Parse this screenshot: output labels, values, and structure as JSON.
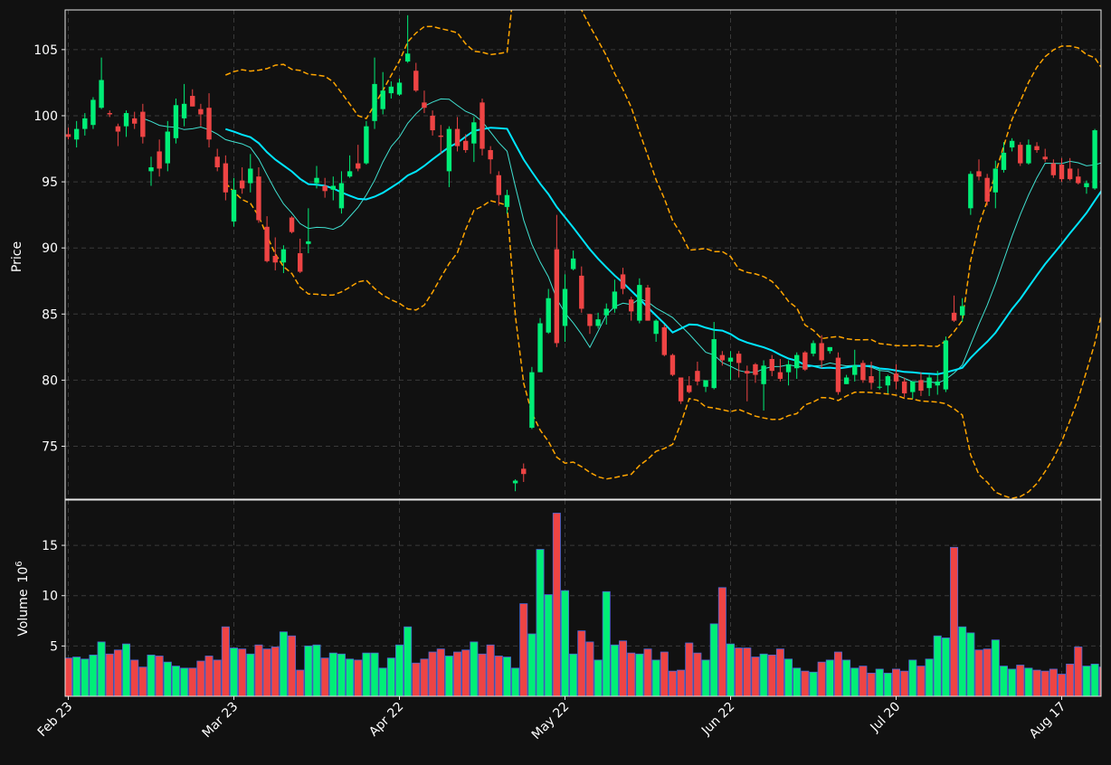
{
  "colors": {
    "background": "#111111",
    "axes_border": "#e6e6e6",
    "grid": "#3a3a3a",
    "up": "#00ee77",
    "down": "#ee4444",
    "volume_edge": "#4a67d6",
    "ma_fast": "#40e0d0",
    "ma_slow": "#00e5ff",
    "bands": "#ffa500",
    "text": "#ffffff"
  },
  "chart_data": {
    "type": "candlestick",
    "price_axis": {
      "label": "Price",
      "ylim": [
        71,
        108
      ],
      "ticks": [
        75,
        80,
        85,
        90,
        95,
        100,
        105
      ],
      "grid": true
    },
    "volume_axis": {
      "label": "Volume",
      "unit_exp": "6",
      "ylim": [
        0,
        19.5
      ],
      "ticks": [
        5,
        10,
        15
      ],
      "grid": true
    },
    "x_tick_labels": [
      "Feb 23",
      "Mar 23",
      "Apr 22",
      "May 22",
      "Jun 22",
      "Jul 20",
      "Aug 17"
    ],
    "x_tick_index": [
      0,
      20,
      40,
      60,
      80,
      100,
      120
    ],
    "dates_note": "trading days Feb 23 – Aug 20 (127 sessions)",
    "ohlc": [
      [
        98.6,
        99.1,
        98.2,
        98.4
      ],
      [
        98.2,
        99.6,
        97.6,
        99.0
      ],
      [
        99.0,
        100.2,
        98.5,
        99.8
      ],
      [
        99.3,
        101.4,
        99.0,
        101.2
      ],
      [
        100.6,
        104.4,
        100.5,
        102.7
      ],
      [
        100.2,
        100.4,
        99.9,
        100.1
      ],
      [
        99.2,
        99.4,
        97.7,
        98.8
      ],
      [
        99.2,
        100.4,
        98.4,
        100.2
      ],
      [
        99.8,
        100.3,
        99.0,
        99.4
      ],
      [
        100.3,
        100.9,
        97.9,
        98.4
      ],
      [
        95.8,
        96.9,
        94.7,
        96.1
      ],
      [
        97.3,
        98.2,
        95.4,
        96.0
      ],
      [
        96.4,
        99.6,
        95.8,
        98.8
      ],
      [
        98.3,
        101.3,
        97.9,
        100.8
      ],
      [
        99.8,
        102.4,
        99.2,
        100.9
      ],
      [
        101.5,
        102.0,
        100.7,
        100.7
      ],
      [
        100.5,
        100.9,
        99.2,
        100.1
      ],
      [
        100.6,
        101.7,
        97.6,
        98.2
      ],
      [
        96.9,
        97.5,
        95.8,
        96.1
      ],
      [
        96.4,
        97.0,
        93.6,
        94.2
      ],
      [
        92.0,
        95.3,
        91.6,
        94.4
      ],
      [
        95.1,
        96.1,
        94.1,
        94.5
      ],
      [
        94.9,
        97.1,
        94.2,
        96.0
      ],
      [
        95.4,
        96.1,
        91.9,
        92.1
      ],
      [
        91.6,
        92.4,
        88.9,
        89.0
      ],
      [
        89.4,
        90.8,
        88.3,
        88.9
      ],
      [
        88.9,
        90.2,
        88.1,
        89.9
      ],
      [
        92.3,
        92.4,
        91.1,
        91.2
      ],
      [
        89.6,
        90.7,
        88.1,
        88.2
      ],
      [
        90.3,
        93.0,
        89.6,
        90.5
      ],
      [
        94.9,
        96.2,
        94.5,
        95.3
      ],
      [
        94.7,
        95.3,
        93.8,
        94.3
      ],
      [
        94.4,
        95.4,
        93.6,
        94.7
      ],
      [
        93.0,
        95.8,
        92.6,
        94.9
      ],
      [
        95.4,
        97.0,
        95.3,
        95.8
      ],
      [
        96.4,
        97.8,
        95.8,
        96.0
      ],
      [
        96.4,
        99.6,
        96.3,
        99.2
      ],
      [
        99.6,
        104.4,
        99.0,
        102.4
      ],
      [
        100.5,
        103.3,
        100.1,
        101.9
      ],
      [
        101.7,
        102.6,
        101.3,
        102.2
      ],
      [
        101.6,
        102.8,
        101.5,
        102.5
      ],
      [
        104.1,
        107.6,
        104.0,
        104.7
      ],
      [
        103.4,
        104.0,
        101.8,
        101.9
      ],
      [
        101.0,
        101.9,
        100.2,
        100.6
      ],
      [
        100.0,
        100.4,
        98.5,
        98.9
      ],
      [
        98.5,
        99.3,
        97.1,
        98.4
      ],
      [
        95.8,
        99.2,
        94.6,
        99.0
      ],
      [
        99.0,
        99.9,
        97.3,
        97.7
      ],
      [
        98.1,
        98.6,
        97.2,
        97.4
      ],
      [
        97.9,
        99.9,
        96.5,
        99.5
      ],
      [
        101.0,
        101.3,
        97.0,
        97.5
      ],
      [
        97.4,
        97.7,
        95.6,
        96.7
      ],
      [
        95.5,
        95.8,
        93.2,
        94.0
      ],
      [
        93.1,
        94.4,
        92.6,
        94.0
      ],
      [
        72.2,
        72.5,
        71.6,
        72.4
      ],
      [
        73.3,
        73.7,
        72.3,
        72.9
      ],
      [
        76.4,
        81.0,
        76.3,
        80.6
      ],
      [
        80.6,
        84.7,
        80.6,
        84.3
      ],
      [
        83.6,
        86.9,
        83.5,
        86.2
      ],
      [
        89.9,
        92.5,
        82.5,
        82.8
      ],
      [
        84.1,
        88.0,
        82.9,
        86.9
      ],
      [
        88.4,
        89.8,
        88.3,
        89.2
      ],
      [
        87.9,
        88.6,
        85.1,
        85.4
      ],
      [
        85.0,
        85.0,
        83.5,
        84.1
      ],
      [
        84.1,
        85.1,
        83.9,
        84.6
      ],
      [
        84.9,
        85.8,
        84.2,
        85.4
      ],
      [
        85.4,
        87.6,
        85.1,
        86.7
      ],
      [
        88.0,
        88.5,
        86.5,
        86.9
      ],
      [
        86.1,
        86.3,
        84.5,
        85.2
      ],
      [
        84.5,
        87.7,
        84.3,
        87.2
      ],
      [
        87.0,
        87.2,
        84.5,
        84.5
      ],
      [
        83.5,
        84.6,
        82.9,
        84.5
      ],
      [
        84.0,
        84.2,
        81.8,
        81.9
      ],
      [
        81.9,
        82.0,
        80.3,
        80.4
      ],
      [
        80.2,
        80.2,
        78.2,
        78.4
      ],
      [
        79.6,
        80.3,
        79.0,
        79.1
      ],
      [
        80.7,
        81.4,
        79.6,
        79.9
      ],
      [
        79.5,
        80.0,
        79.1,
        80.0
      ],
      [
        79.4,
        84.4,
        79.3,
        83.1
      ],
      [
        81.9,
        82.2,
        81.1,
        81.5
      ],
      [
        81.4,
        82.2,
        80.0,
        81.7
      ],
      [
        82.0,
        82.2,
        80.2,
        81.3
      ],
      [
        80.7,
        81.1,
        78.4,
        80.5
      ],
      [
        81.2,
        81.3,
        79.8,
        80.4
      ],
      [
        79.7,
        81.5,
        77.7,
        81.1
      ],
      [
        81.6,
        81.9,
        80.3,
        80.7
      ],
      [
        80.6,
        81.6,
        79.9,
        80.1
      ],
      [
        80.6,
        81.5,
        79.6,
        81.2
      ],
      [
        80.9,
        82.1,
        80.1,
        81.9
      ],
      [
        82.1,
        82.2,
        80.7,
        80.8
      ],
      [
        82.0,
        83.0,
        81.8,
        82.8
      ],
      [
        82.8,
        83.4,
        80.9,
        81.5
      ],
      [
        82.2,
        82.5,
        82.0,
        82.5
      ],
      [
        81.7,
        82.1,
        78.9,
        79.1
      ],
      [
        79.7,
        80.4,
        79.7,
        80.2
      ],
      [
        80.4,
        82.3,
        79.9,
        81.1
      ],
      [
        81.3,
        81.5,
        79.8,
        80.0
      ],
      [
        80.3,
        81.4,
        79.3,
        79.8
      ],
      [
        79.5,
        80.9,
        79.3,
        79.5
      ],
      [
        79.6,
        80.4,
        79.0,
        80.3
      ],
      [
        80.5,
        81.2,
        79.3,
        79.9
      ],
      [
        79.9,
        80.2,
        78.7,
        79.0
      ],
      [
        79.1,
        79.9,
        78.6,
        79.9
      ],
      [
        80.0,
        80.6,
        78.8,
        79.2
      ],
      [
        79.4,
        80.4,
        78.8,
        80.2
      ],
      [
        79.6,
        80.7,
        78.9,
        79.9
      ],
      [
        79.3,
        83.3,
        79.1,
        83.0
      ],
      [
        85.1,
        86.4,
        84.4,
        84.5
      ],
      [
        84.9,
        86.2,
        84.4,
        85.6
      ],
      [
        93.0,
        95.8,
        92.5,
        95.6
      ],
      [
        95.8,
        96.7,
        95.1,
        95.4
      ],
      [
        95.3,
        95.6,
        93.2,
        93.5
      ],
      [
        94.2,
        96.6,
        93.0,
        96.0
      ],
      [
        95.9,
        98.0,
        95.7,
        97.2
      ],
      [
        97.6,
        98.3,
        97.3,
        98.1
      ],
      [
        97.8,
        98.0,
        96.2,
        96.4
      ],
      [
        96.4,
        98.2,
        96.3,
        97.8
      ],
      [
        97.7,
        98.0,
        97.2,
        97.4
      ],
      [
        96.9,
        97.5,
        96.5,
        96.7
      ],
      [
        96.4,
        96.7,
        95.3,
        95.5
      ],
      [
        96.3,
        96.8,
        95.0,
        95.2
      ],
      [
        96.0,
        96.8,
        95.1,
        95.2
      ],
      [
        95.4,
        96.0,
        94.8,
        94.9
      ],
      [
        94.6,
        95.1,
        94.1,
        94.9
      ],
      [
        94.5,
        99.0,
        94.4,
        98.9
      ],
      [
        98.4,
        98.7,
        97.9,
        98.2
      ],
      [
        98.5,
        100.5,
        98.2,
        100.2
      ]
    ],
    "volume": [
      3.8,
      3.9,
      3.7,
      4.1,
      5.4,
      4.2,
      4.6,
      5.2,
      3.6,
      2.9,
      4.1,
      4.0,
      3.4,
      3.0,
      2.8,
      2.8,
      3.5,
      4.0,
      3.6,
      6.9,
      4.8,
      4.7,
      4.2,
      5.1,
      4.7,
      4.9,
      6.4,
      6.0,
      2.6,
      5.0,
      5.1,
      3.8,
      4.3,
      4.2,
      3.7,
      3.6,
      4.3,
      4.3,
      2.8,
      3.8,
      5.1,
      6.9,
      3.3,
      3.7,
      4.4,
      4.7,
      4.0,
      4.4,
      4.6,
      5.4,
      4.2,
      5.1,
      4.0,
      3.9,
      2.8,
      9.2,
      6.2,
      14.6,
      10.1,
      18.2,
      10.5,
      4.2,
      6.5,
      5.4,
      3.6,
      10.4,
      5.1,
      5.5,
      4.3,
      4.2,
      4.7,
      3.6,
      4.4,
      2.5,
      2.6,
      5.3,
      4.3,
      3.6,
      7.2,
      10.8,
      5.2,
      4.8,
      4.8,
      3.9,
      4.2,
      4.1,
      4.7,
      3.7,
      2.8,
      2.5,
      2.4,
      3.4,
      3.6,
      4.4,
      3.6,
      2.8,
      3.0,
      2.3,
      2.7,
      2.3,
      2.7,
      2.5,
      3.6,
      3.0,
      3.7,
      6.0,
      5.8,
      14.8,
      6.9,
      6.3,
      4.6,
      4.7,
      5.6,
      3.0,
      2.7,
      3.1,
      2.8,
      2.6,
      2.5,
      2.7,
      2.2,
      3.2,
      4.9,
      3.0,
      3.2,
      2.9,
      3.3
    ]
  }
}
